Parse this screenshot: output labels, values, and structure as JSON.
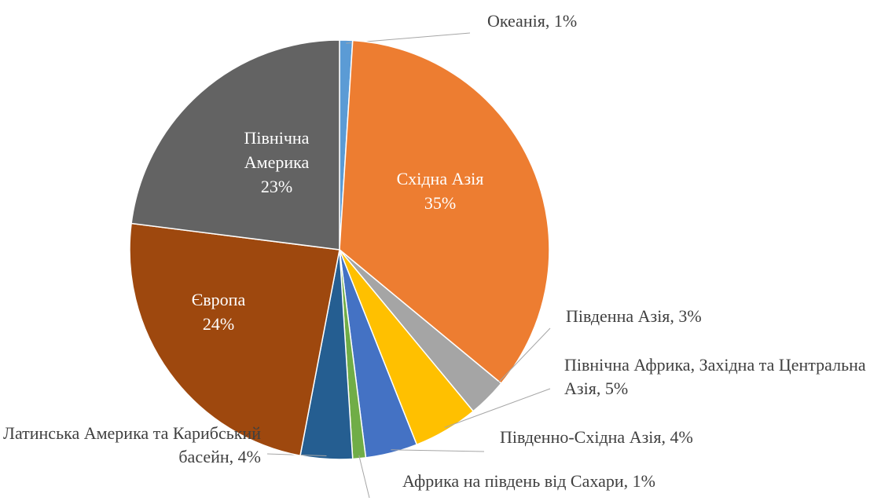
{
  "chart_data": {
    "type": "pie",
    "categories": [
      "Океанія",
      "Східна Азія",
      "Південна Азія",
      "Північна Африка, Західна та Центральна Азія",
      "Південно-Східна Азія",
      "Африка на південь від Сахари",
      "Латинська Америка та Карибський басейн",
      "Європа",
      "Північна Америка"
    ],
    "values": [
      1,
      35,
      3,
      5,
      4,
      1,
      4,
      24,
      23
    ],
    "value_labels": [
      "1%",
      "35%",
      "3%",
      "5%",
      "4%",
      "1%",
      "4%",
      "24%",
      "23%"
    ],
    "colors": [
      "#5b9bd5",
      "#ed7d31",
      "#a5a5a5",
      "#ffc000",
      "#4472c4",
      "#70ad47",
      "#255e91",
      "#9e480e",
      "#636363"
    ],
    "label_separator": ", "
  }
}
